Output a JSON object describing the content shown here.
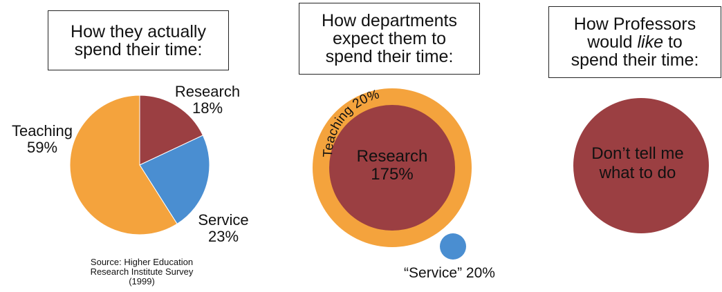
{
  "chart_data": [
    {
      "type": "pie",
      "title_lines": [
        "How they actually",
        "spend their time:"
      ],
      "slices": [
        {
          "label": "Research",
          "value": 18,
          "value_label": "18%",
          "color": "#9B3F42"
        },
        {
          "label": "Service",
          "value": 23,
          "value_label": "23%",
          "color": "#4A8ED1"
        },
        {
          "label": "Teaching",
          "value": 59,
          "value_label": "59%",
          "color": "#F4A33D"
        }
      ],
      "source_lines": [
        "Source: Higher Education",
        "Research Institute Survey",
        "(1999)"
      ]
    },
    {
      "type": "pie",
      "title_lines": [
        "How departments",
        "expect them to",
        "spend their time:"
      ],
      "slices": [
        {
          "label": "Research",
          "value": 175,
          "value_label": "175%",
          "color": "#9B3F42"
        },
        {
          "label": "Teaching",
          "value": 20,
          "value_label": "Teaching 20%",
          "color": "#F4A33D"
        },
        {
          "label": "“Service”",
          "value": 20,
          "value_label": "“Service” 20%",
          "color": "#4A8ED1"
        }
      ]
    },
    {
      "type": "pie",
      "title_lines": [
        "How Professors",
        "would",
        "like",
        "to",
        "spend their time:"
      ],
      "slices": [
        {
          "label": "Don’t tell me what to do",
          "value": 100,
          "color": "#9B3F42"
        }
      ],
      "text_lines": [
        "Don’t tell me",
        "what to do"
      ]
    }
  ]
}
